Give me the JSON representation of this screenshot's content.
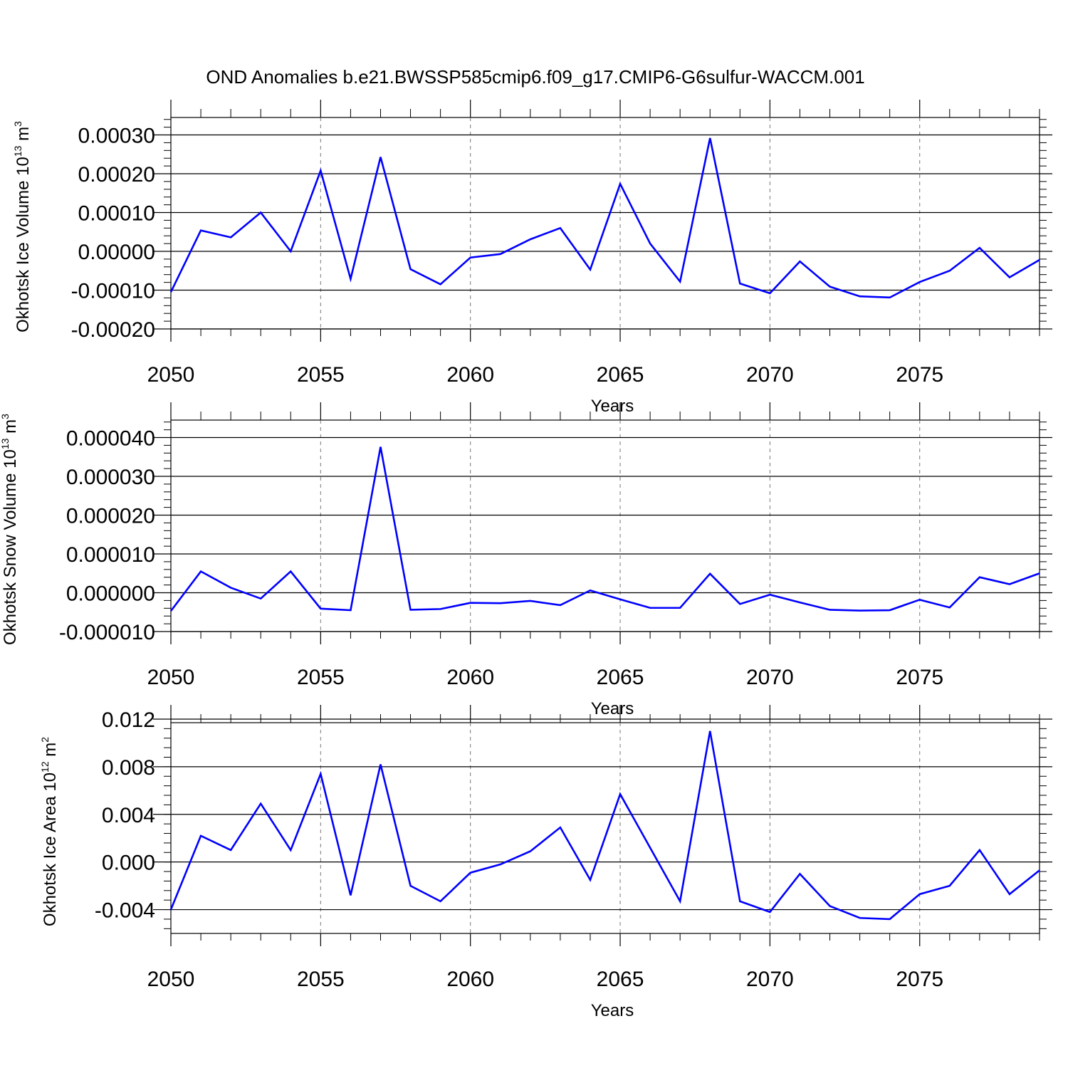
{
  "title": "OND Anomalies b.e21.BWSSP585cmip6.f09_g17.CMIP6-G6sulfur-WACCM.001",
  "colors": {
    "series": "#0000ff",
    "axis": "#000000",
    "grid": "#777777"
  },
  "chart_data": [
    {
      "type": "line",
      "title": "",
      "xlabel": "Years",
      "ylabel": {
        "main": "Okhotsk Ice Volume 10",
        "exp": "13",
        "unit": " m",
        "unit_exp": "3"
      },
      "x": [
        2050,
        2051,
        2052,
        2053,
        2054,
        2055,
        2056,
        2057,
        2058,
        2059,
        2060,
        2061,
        2062,
        2063,
        2064,
        2065,
        2066,
        2067,
        2068,
        2069,
        2070,
        2071,
        2072,
        2073,
        2074,
        2075,
        2076,
        2077,
        2078,
        2079
      ],
      "xlim": [
        2050,
        2079
      ],
      "xticks": [
        "2050",
        "2055",
        "2060",
        "2065",
        "2070",
        "2075"
      ],
      "ylim": [
        -0.0002,
        0.000345
      ],
      "yticks": [
        "0.00030",
        "0.00020",
        "0.00010",
        "0.00000",
        "-0.00010",
        "-0.00020"
      ],
      "series": [
        {
          "values": [
            -0.000105,
            5.4e-05,
            3.6e-05,
            0.0001,
            0.0,
            0.000208,
            -7.1e-05,
            0.000243,
            -4.6e-05,
            -8.5e-05,
            -1.6e-05,
            -7e-06,
            3.1e-05,
            6e-05,
            -4.7e-05,
            0.000174,
            2e-05,
            -7.8e-05,
            0.000292,
            -8.3e-05,
            -0.000108,
            -2.6e-05,
            -9.1e-05,
            -0.000116,
            -0.000119,
            -7.9e-05,
            -5e-05,
            9e-06,
            -6.7e-05,
            -2.2e-05
          ]
        }
      ],
      "grid": "vertical dashed at major x ticks"
    },
    {
      "type": "line",
      "title": "",
      "xlabel": "Years",
      "ylabel": {
        "main": "Okhotsk Snow Volume 10",
        "exp": "13",
        "unit": " m",
        "unit_exp": "3"
      },
      "x": [
        2050,
        2051,
        2052,
        2053,
        2054,
        2055,
        2056,
        2057,
        2058,
        2059,
        2060,
        2061,
        2062,
        2063,
        2064,
        2065,
        2066,
        2067,
        2068,
        2069,
        2070,
        2071,
        2072,
        2073,
        2074,
        2075,
        2076,
        2077,
        2078,
        2079
      ],
      "xlim": [
        2050,
        2079
      ],
      "xticks": [
        "2050",
        "2055",
        "2060",
        "2065",
        "2070",
        "2075"
      ],
      "ylim": [
        -1e-05,
        4.45e-05
      ],
      "yticks": [
        "0.000040",
        "0.000030",
        "0.000020",
        "0.000010",
        "0.000000",
        "-0.000010"
      ],
      "series": [
        {
          "values": [
            -4.7e-06,
            5.5e-06,
            1.3e-06,
            -1.5e-06,
            5.5e-06,
            -4.1e-06,
            -4.5e-06,
            3.76e-05,
            -4.4e-06,
            -4.2e-06,
            -2.6e-06,
            -2.7e-06,
            -2.1e-06,
            -3.2e-06,
            6e-07,
            -1.7e-06,
            -3.9e-06,
            -3.9e-06,
            4.9e-06,
            -2.9e-06,
            -5e-07,
            -2.5e-06,
            -4.4e-06,
            -4.6e-06,
            -4.5e-06,
            -1.8e-06,
            -3.8e-06,
            4e-06,
            2.2e-06,
            5e-06
          ]
        }
      ],
      "grid": "vertical dashed at major x ticks"
    },
    {
      "type": "line",
      "title": "",
      "xlabel": "Years",
      "ylabel": {
        "main": "Okhotsk Ice Area 10",
        "exp": "12",
        "unit": " m",
        "unit_exp": "2"
      },
      "x": [
        2050,
        2051,
        2052,
        2053,
        2054,
        2055,
        2056,
        2057,
        2058,
        2059,
        2060,
        2061,
        2062,
        2063,
        2064,
        2065,
        2066,
        2067,
        2068,
        2069,
        2070,
        2071,
        2072,
        2073,
        2074,
        2075,
        2076,
        2077,
        2078,
        2079
      ],
      "xlim": [
        2050,
        2079
      ],
      "xticks": [
        "2050",
        "2055",
        "2060",
        "2065",
        "2070",
        "2075"
      ],
      "ylim": [
        -0.006,
        0.0117
      ],
      "yticks": [
        "0.012",
        "0.008",
        "0.004",
        "0.000",
        "-0.004"
      ],
      "series": [
        {
          "values": [
            -0.004,
            0.0022,
            0.001,
            0.0049,
            0.001,
            0.0074,
            -0.0028,
            0.0082,
            -0.002,
            -0.0033,
            -0.0009,
            -0.0002,
            0.0009,
            0.0029,
            -0.0015,
            0.0057,
            0.0012,
            -0.0033,
            0.011,
            -0.0033,
            -0.0042,
            -0.001,
            -0.0037,
            -0.0047,
            -0.0048,
            -0.0027,
            -0.002,
            0.001,
            -0.0027,
            -0.0007
          ]
        }
      ],
      "grid": "vertical dashed at major x ticks"
    }
  ]
}
